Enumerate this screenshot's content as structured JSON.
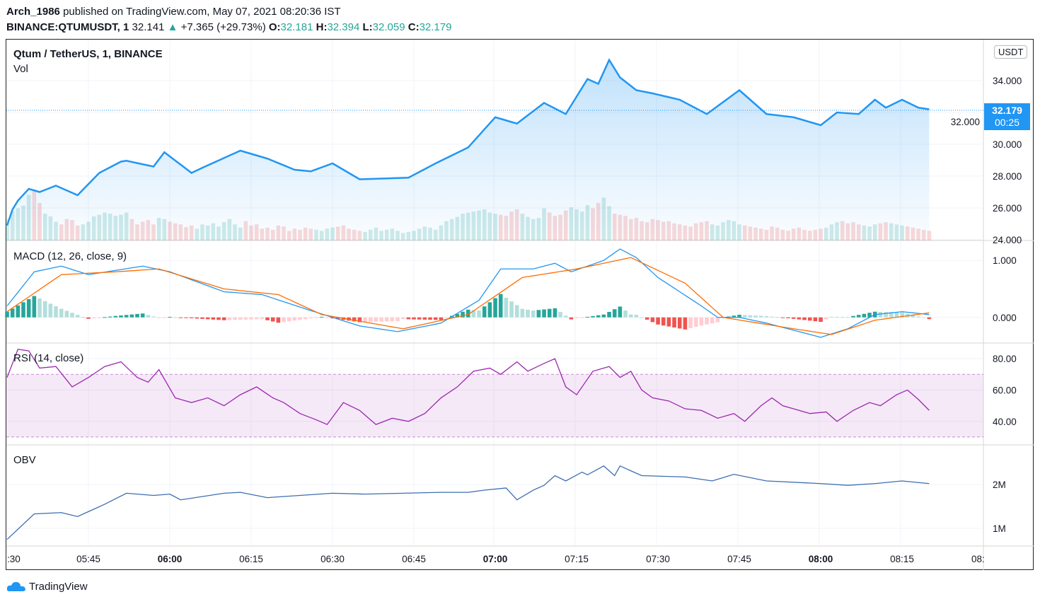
{
  "header": {
    "author": "Arch_1986",
    "published": "published on TradingView.com, May 07, 2021 08:20:36 IST",
    "symbol": "BINANCE:QTUMUSDT, 1",
    "last": "32.141",
    "arrow": "▲",
    "change": "+7.365 (+29.73%)",
    "o_label": "O:",
    "o": "32.181",
    "h_label": "H:",
    "h": "32.394",
    "l_label": "L:",
    "l": "32.059",
    "c_label": "C:",
    "c": "32.179"
  },
  "chart_title": "Qtum / TetherUS, 1, BINANCE",
  "currency": "USDT",
  "last_price": {
    "value": "32.179",
    "countdown": "00:25"
  },
  "brand": "TradingView",
  "colors": {
    "price": "#2196f3",
    "macd": "#2196f3",
    "signal": "#ff6d00",
    "rsi": "#9c27b0",
    "obv": "#3d6eb0",
    "up": "#26a69a",
    "down": "#ef5350"
  },
  "chart_data": [
    {
      "type": "area",
      "title": "Qtum / TetherUS, 1, BINANCE",
      "x_unit": "minutes since 05:30",
      "ylim": [
        24,
        36
      ],
      "yticks": [
        "34.000",
        "32.000",
        "30.000",
        "28.000",
        "26.000",
        "24.000"
      ],
      "ytick_values": [
        34,
        32,
        30,
        28,
        26,
        24
      ],
      "points": [
        [
          0,
          24.9
        ],
        [
          1.3,
          26.2
        ],
        [
          4,
          27.2
        ],
        [
          6,
          27.0
        ],
        [
          9,
          27.4
        ],
        [
          13,
          26.8
        ],
        [
          17,
          28.2
        ],
        [
          21.5,
          29.0
        ],
        [
          27,
          28.6
        ],
        [
          29,
          29.5
        ],
        [
          34,
          28.2
        ],
        [
          36.5,
          28.6
        ],
        [
          43,
          29.6
        ],
        [
          48,
          29.1
        ],
        [
          53,
          28.4
        ],
        [
          56,
          28.3
        ],
        [
          60,
          28.8
        ],
        [
          65,
          27.8
        ],
        [
          74,
          27.9
        ],
        [
          79,
          28.8
        ],
        [
          85,
          29.8
        ],
        [
          90,
          31.7
        ],
        [
          94,
          31.3
        ],
        [
          99,
          32.6
        ],
        [
          103,
          31.9
        ],
        [
          107,
          34.1
        ],
        [
          109,
          33.8
        ],
        [
          111,
          35.3
        ],
        [
          113,
          34.2
        ],
        [
          116,
          33.4
        ],
        [
          119,
          33.2
        ],
        [
          124,
          32.8
        ],
        [
          129,
          31.9
        ],
        [
          135,
          33.4
        ],
        [
          140,
          31.9
        ],
        [
          145,
          31.7
        ],
        [
          150,
          31.2
        ],
        [
          153,
          32.0
        ],
        [
          157,
          31.9
        ],
        [
          160,
          32.8
        ],
        [
          162,
          32.3
        ],
        [
          165,
          32.8
        ],
        [
          168,
          32.3
        ],
        [
          170,
          32.2
        ]
      ]
    },
    {
      "type": "bar",
      "title": "Vol",
      "values": [
        40,
        55,
        60,
        65,
        85,
        95,
        70,
        50,
        45,
        35,
        30,
        40,
        38,
        28,
        30,
        35,
        45,
        48,
        52,
        50,
        46,
        48,
        52,
        40,
        30,
        35,
        38,
        30,
        42,
        40,
        35,
        32,
        30,
        25,
        28,
        22,
        30,
        28,
        32,
        26,
        34,
        40,
        30,
        24,
        36,
        28,
        30,
        22,
        24,
        20,
        28,
        26,
        18,
        22,
        20,
        24,
        22,
        20,
        18,
        22,
        24,
        26,
        28,
        22,
        20,
        18,
        16,
        20,
        24,
        18,
        20,
        22,
        18,
        14,
        16,
        18,
        22,
        26,
        24,
        20,
        28,
        36,
        40,
        44,
        50,
        52,
        54,
        56,
        58,
        52,
        50,
        48,
        46,
        54,
        58,
        50,
        44,
        40,
        42,
        60,
        52,
        46,
        48,
        56,
        62,
        58,
        54,
        66,
        60,
        70,
        80,
        64,
        50,
        48,
        46,
        40,
        42,
        36,
        34,
        40,
        38,
        35,
        36,
        32,
        30,
        28,
        26,
        32,
        34,
        36,
        30,
        28,
        34,
        38,
        36,
        30,
        28,
        26,
        24,
        22,
        20,
        26,
        24,
        20,
        18,
        22,
        24,
        20,
        18,
        20,
        22,
        24,
        30,
        34,
        36,
        32,
        34,
        30,
        28,
        26,
        30,
        32,
        34,
        32,
        30,
        28,
        26,
        24,
        22,
        20,
        18
      ]
    },
    {
      "type": "line",
      "title": "MACD (12, 26, close, 9)",
      "ylim": [
        -0.45,
        1.35
      ],
      "yticks": [
        "1.000",
        "0.000"
      ],
      "ytick_values": [
        1,
        0
      ],
      "macd": [
        [
          0,
          0.2
        ],
        [
          5,
          0.8
        ],
        [
          10,
          0.9
        ],
        [
          15,
          0.75
        ],
        [
          25,
          0.9
        ],
        [
          30,
          0.8
        ],
        [
          40,
          0.45
        ],
        [
          47,
          0.4
        ],
        [
          55,
          0.15
        ],
        [
          65,
          -0.15
        ],
        [
          72,
          -0.25
        ],
        [
          80,
          -0.1
        ],
        [
          87,
          0.3
        ],
        [
          91,
          0.85
        ],
        [
          97,
          0.85
        ],
        [
          101,
          0.95
        ],
        [
          104,
          0.8
        ],
        [
          110,
          1.0
        ],
        [
          113,
          1.2
        ],
        [
          116,
          1.05
        ],
        [
          120,
          0.7
        ],
        [
          128,
          0.2
        ],
        [
          131,
          0.0
        ],
        [
          135,
          0.0
        ],
        [
          140,
          -0.1
        ],
        [
          150,
          -0.35
        ],
        [
          155,
          -0.2
        ],
        [
          160,
          0.05
        ],
        [
          165,
          0.1
        ],
        [
          170,
          0.05
        ]
      ],
      "signal": [
        [
          0,
          0.1
        ],
        [
          10,
          0.75
        ],
        [
          20,
          0.8
        ],
        [
          28,
          0.85
        ],
        [
          40,
          0.5
        ],
        [
          50,
          0.4
        ],
        [
          58,
          0.05
        ],
        [
          73,
          -0.2
        ],
        [
          85,
          0.05
        ],
        [
          95,
          0.7
        ],
        [
          105,
          0.85
        ],
        [
          115,
          1.05
        ],
        [
          125,
          0.6
        ],
        [
          132,
          0.0
        ],
        [
          145,
          -0.2
        ],
        [
          152,
          -0.3
        ],
        [
          160,
          -0.05
        ],
        [
          170,
          0.08
        ]
      ]
    },
    {
      "type": "line",
      "title": "RSI (14, close)",
      "ylim": [
        25,
        90
      ],
      "band": [
        30,
        70
      ],
      "yticks": [
        "80.00",
        "60.00",
        "40.00"
      ],
      "ytick_values": [
        80,
        60,
        40
      ],
      "points": [
        [
          0,
          68
        ],
        [
          2,
          86
        ],
        [
          4,
          85
        ],
        [
          6,
          74
        ],
        [
          9,
          75
        ],
        [
          12,
          62
        ],
        [
          15,
          68
        ],
        [
          18,
          75
        ],
        [
          21,
          78
        ],
        [
          24,
          68
        ],
        [
          26,
          65
        ],
        [
          28,
          73
        ],
        [
          31,
          55
        ],
        [
          34,
          52
        ],
        [
          37,
          55
        ],
        [
          40,
          50
        ],
        [
          43,
          57
        ],
        [
          46,
          62
        ],
        [
          49,
          55
        ],
        [
          51,
          52
        ],
        [
          54,
          45
        ],
        [
          57,
          41
        ],
        [
          59,
          38
        ],
        [
          62,
          52
        ],
        [
          65,
          47
        ],
        [
          68,
          38
        ],
        [
          71,
          42
        ],
        [
          74,
          40
        ],
        [
          77,
          45
        ],
        [
          80,
          55
        ],
        [
          83,
          62
        ],
        [
          86,
          72
        ],
        [
          89,
          74
        ],
        [
          91,
          70
        ],
        [
          94,
          78
        ],
        [
          96,
          72
        ],
        [
          99,
          77
        ],
        [
          101,
          80
        ],
        [
          103,
          62
        ],
        [
          105,
          57
        ],
        [
          108,
          72
        ],
        [
          111,
          75
        ],
        [
          113,
          68
        ],
        [
          115,
          72
        ],
        [
          117,
          60
        ],
        [
          119,
          55
        ],
        [
          122,
          53
        ],
        [
          125,
          48
        ],
        [
          128,
          47
        ],
        [
          131,
          42
        ],
        [
          134,
          45
        ],
        [
          136,
          40
        ],
        [
          139,
          50
        ],
        [
          141,
          55
        ],
        [
          143,
          50
        ],
        [
          145,
          48
        ],
        [
          148,
          45
        ],
        [
          151,
          46
        ],
        [
          153,
          40
        ],
        [
          156,
          47
        ],
        [
          159,
          52
        ],
        [
          161,
          50
        ],
        [
          164,
          57
        ],
        [
          166,
          60
        ],
        [
          168,
          54
        ],
        [
          170,
          47
        ]
      ]
    },
    {
      "type": "line",
      "title": "OBV",
      "ylim": [
        0.6,
        2.9
      ],
      "yticks": [
        "2M",
        "1M"
      ],
      "ytick_values": [
        2,
        1
      ],
      "points": [
        [
          0,
          0.75
        ],
        [
          5,
          1.33
        ],
        [
          10,
          1.36
        ],
        [
          13,
          1.27
        ],
        [
          18,
          1.55
        ],
        [
          22,
          1.8
        ],
        [
          27,
          1.75
        ],
        [
          30,
          1.78
        ],
        [
          32,
          1.65
        ],
        [
          40,
          1.8
        ],
        [
          43,
          1.82
        ],
        [
          48,
          1.7
        ],
        [
          60,
          1.8
        ],
        [
          66,
          1.78
        ],
        [
          80,
          1.82
        ],
        [
          85,
          1.82
        ],
        [
          88,
          1.87
        ],
        [
          92,
          1.92
        ],
        [
          94,
          1.65
        ],
        [
          97,
          1.87
        ],
        [
          99,
          1.98
        ],
        [
          101,
          2.2
        ],
        [
          103,
          2.08
        ],
        [
          106,
          2.28
        ],
        [
          107,
          2.22
        ],
        [
          110,
          2.42
        ],
        [
          112,
          2.2
        ],
        [
          113,
          2.42
        ],
        [
          117,
          2.2
        ],
        [
          125,
          2.17
        ],
        [
          130,
          2.08
        ],
        [
          134,
          2.23
        ],
        [
          140,
          2.08
        ],
        [
          150,
          2.02
        ],
        [
          155,
          1.98
        ],
        [
          160,
          2.02
        ],
        [
          165,
          2.08
        ],
        [
          170,
          2.02
        ]
      ]
    }
  ],
  "time_axis": [
    {
      "label": ":30",
      "m": 0
    },
    {
      "label": "05:45",
      "m": 15
    },
    {
      "label": "06:00",
      "m": 30,
      "bold": true
    },
    {
      "label": "06:15",
      "m": 45
    },
    {
      "label": "06:30",
      "m": 60
    },
    {
      "label": "06:45",
      "m": 75
    },
    {
      "label": "07:00",
      "m": 90,
      "bold": true
    },
    {
      "label": "07:15",
      "m": 105
    },
    {
      "label": "07:30",
      "m": 120
    },
    {
      "label": "07:45",
      "m": 135
    },
    {
      "label": "08:00",
      "m": 150,
      "bold": true
    },
    {
      "label": "08:15",
      "m": 165
    },
    {
      "label": "08:",
      "m": 179
    }
  ]
}
